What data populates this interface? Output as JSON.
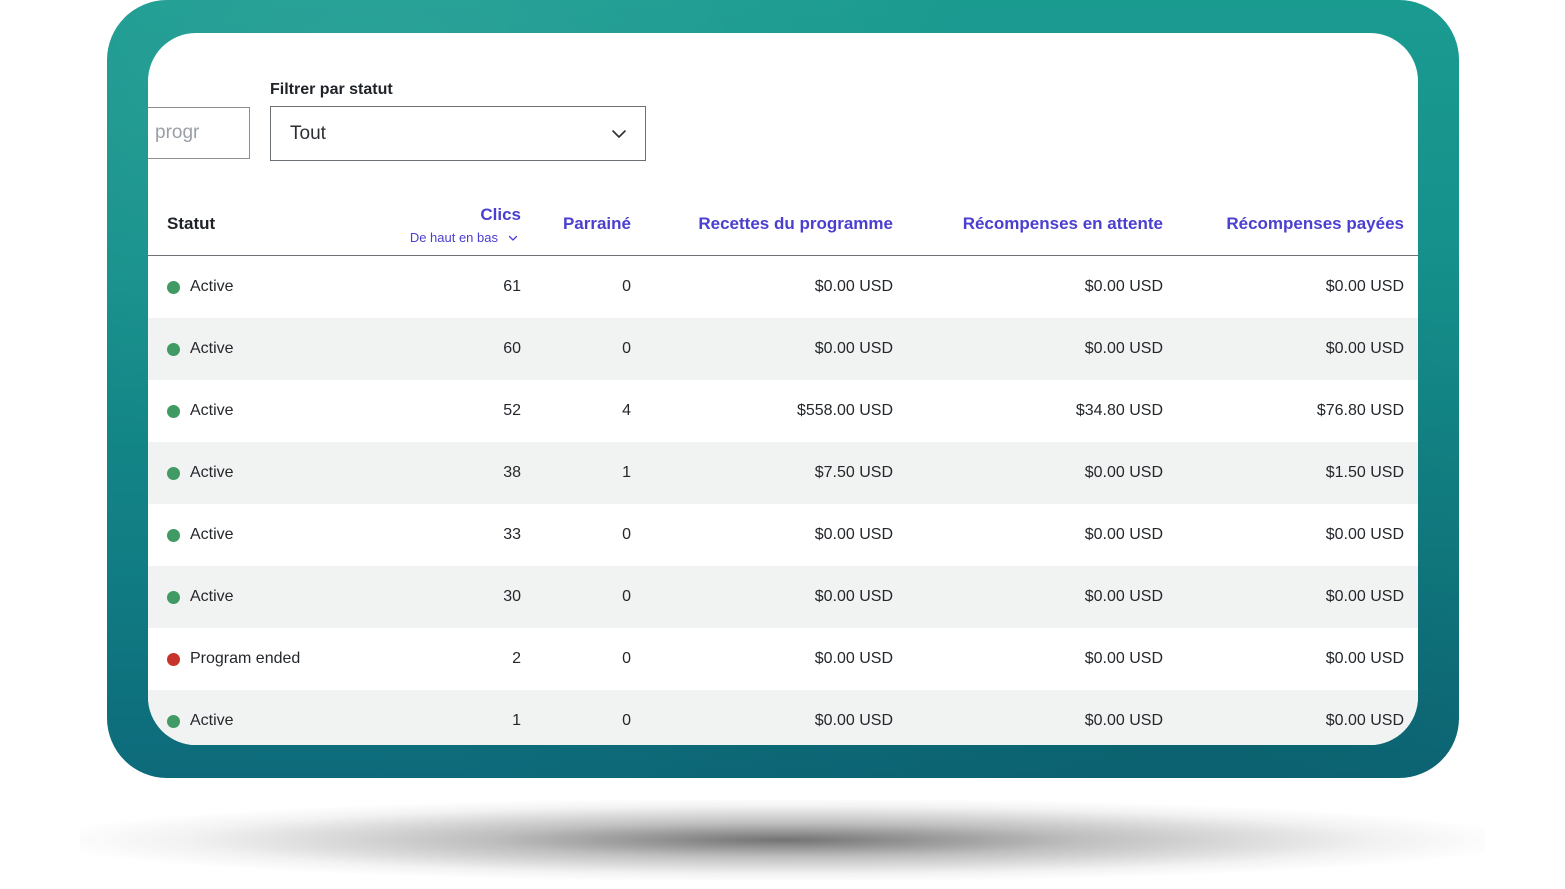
{
  "search": {
    "partial_text": "progr"
  },
  "filter": {
    "label": "Filtrer par statut",
    "selected": "Tout",
    "icon": "chevron-down-icon"
  },
  "table": {
    "headers": {
      "statut": "Statut",
      "clics": "Clics",
      "clics_sort": "De haut en bas",
      "parraine": "Parrainé",
      "recettes": "Recettes du programme",
      "attente": "Récompenses en attente",
      "payees": "Récompenses payées"
    },
    "rows": [
      {
        "status": "Active",
        "status_color": "#3f9a63",
        "clics": "61",
        "parraine": "0",
        "recettes": "$0.00 USD",
        "attente": "$0.00 USD",
        "payees": "$0.00 USD"
      },
      {
        "status": "Active",
        "status_color": "#3f9a63",
        "clics": "60",
        "parraine": "0",
        "recettes": "$0.00 USD",
        "attente": "$0.00 USD",
        "payees": "$0.00 USD"
      },
      {
        "status": "Active",
        "status_color": "#3f9a63",
        "clics": "52",
        "parraine": "4",
        "recettes": "$558.00 USD",
        "attente": "$34.80 USD",
        "payees": "$76.80 USD"
      },
      {
        "status": "Active",
        "status_color": "#3f9a63",
        "clics": "38",
        "parraine": "1",
        "recettes": "$7.50 USD",
        "attente": "$0.00 USD",
        "payees": "$1.50 USD"
      },
      {
        "status": "Active",
        "status_color": "#3f9a63",
        "clics": "33",
        "parraine": "0",
        "recettes": "$0.00 USD",
        "attente": "$0.00 USD",
        "payees": "$0.00 USD"
      },
      {
        "status": "Active",
        "status_color": "#3f9a63",
        "clics": "30",
        "parraine": "0",
        "recettes": "$0.00 USD",
        "attente": "$0.00 USD",
        "payees": "$0.00 USD"
      },
      {
        "status": "Program ended",
        "status_color": "#c8332b",
        "clics": "2",
        "parraine": "0",
        "recettes": "$0.00 USD",
        "attente": "$0.00 USD",
        "payees": "$0.00 USD"
      },
      {
        "status": "Active",
        "status_color": "#3f9a63",
        "clics": "1",
        "parraine": "0",
        "recettes": "$0.00 USD",
        "attente": "$0.00 USD",
        "payees": "$0.00 USD"
      }
    ]
  },
  "colors": {
    "accent": "#4b3fcf",
    "frame": "#15908b",
    "row_alt": "#f1f3f2"
  }
}
